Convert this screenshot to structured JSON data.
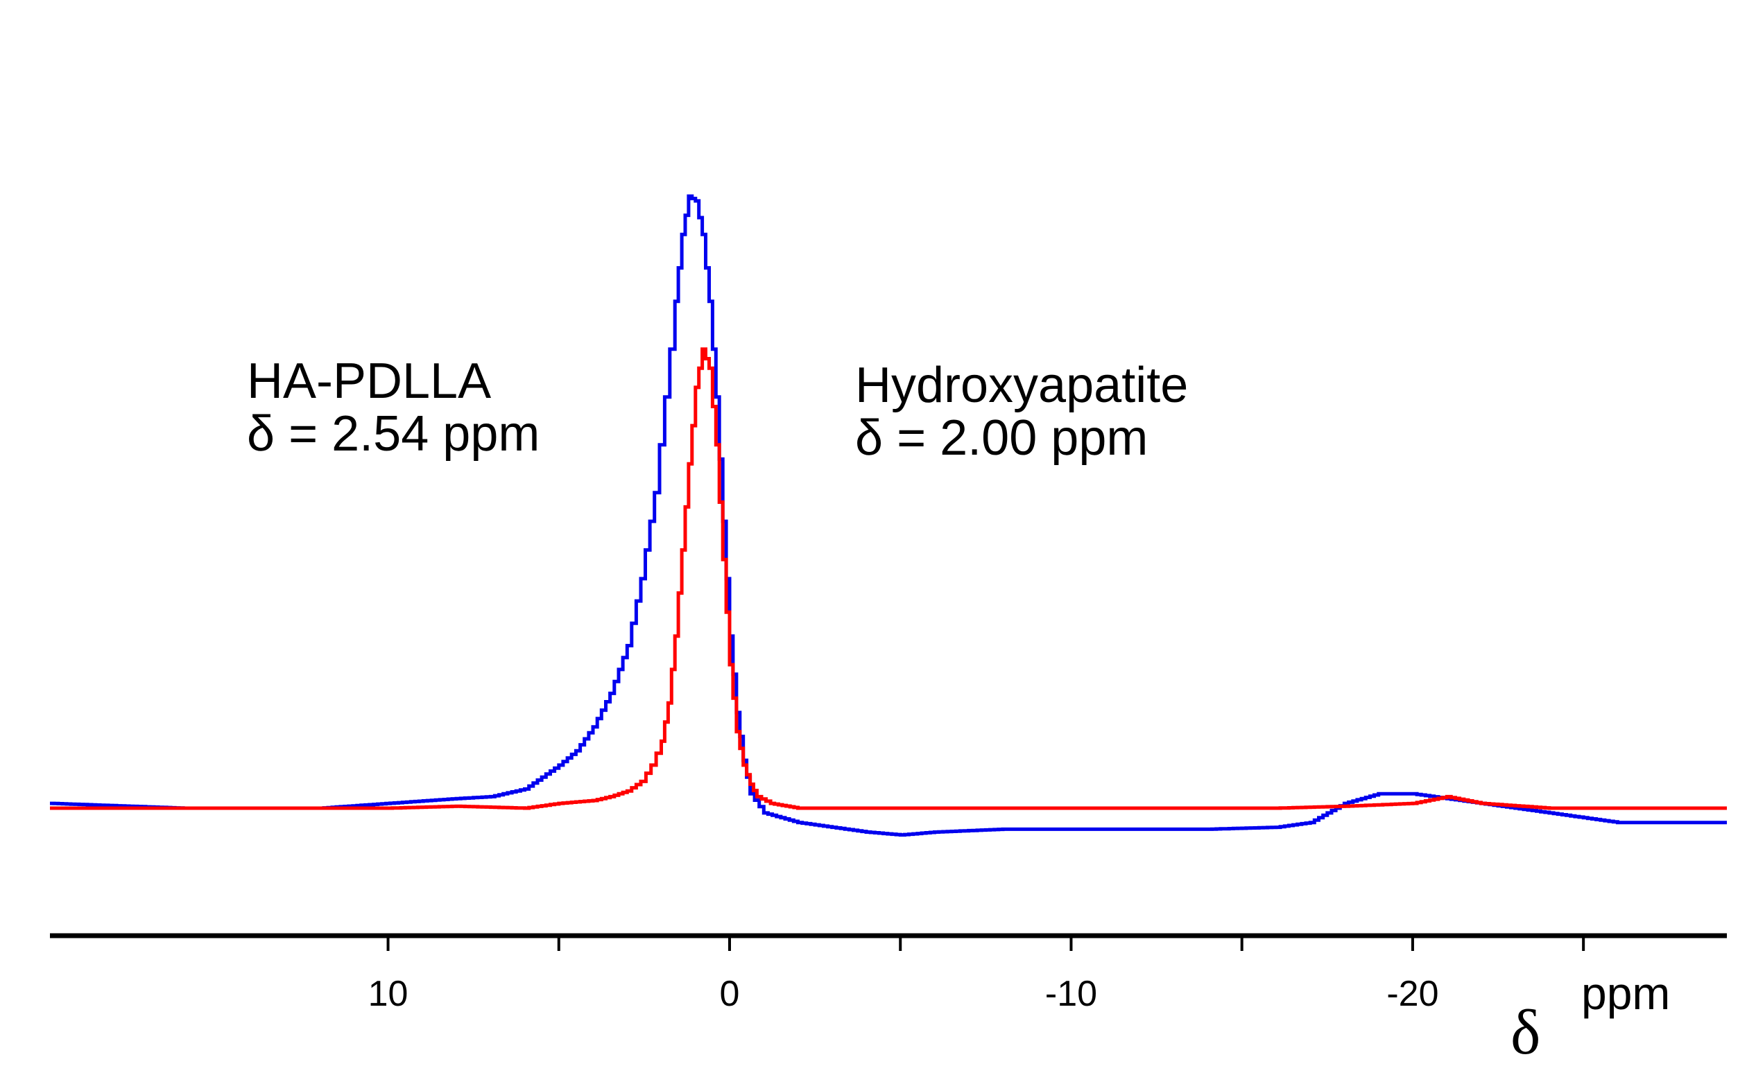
{
  "chart_data": {
    "type": "line",
    "title": "",
    "xlabel_symbol": "δ",
    "xlabel_unit": "ppm",
    "ylabel": "",
    "xlim": [
      19.9,
      -29.2
    ],
    "ylim": [
      -1.0,
      6.5
    ],
    "grid": false,
    "x_ticks": [
      {
        "value": 10,
        "label": "10"
      },
      {
        "value": 0,
        "label": "0"
      },
      {
        "value": -10,
        "label": "-10"
      },
      {
        "value": -20,
        "label": "-20"
      }
    ],
    "minor_ticks": [
      5,
      -5,
      -15,
      -25
    ],
    "series": [
      {
        "name": "HA-PDLLA",
        "color": "#0000ee",
        "x": [
          19.9,
          16.0,
          12.0,
          8.0,
          7.0,
          6.0,
          5.0,
          4.5,
          4.0,
          3.5,
          3.0,
          2.6,
          2.2,
          1.9,
          1.6,
          1.4,
          1.2,
          1.0,
          0.8,
          0.6,
          0.4,
          0.2,
          0.0,
          -0.2,
          -0.4,
          -0.6,
          -1.0,
          -2.0,
          -3.0,
          -4.0,
          -5.0,
          -6.0,
          -8.0,
          -10.0,
          -12.0,
          -14.0,
          -16.0,
          -17.0,
          -18.0,
          -19.0,
          -20.0,
          -21.0,
          -22.0,
          -24.0,
          -26.0,
          -28.0,
          -29.2
        ],
        "y": [
          0.05,
          0.0,
          0.0,
          0.1,
          0.12,
          0.2,
          0.45,
          0.6,
          0.85,
          1.2,
          1.7,
          2.4,
          3.3,
          4.3,
          5.3,
          6.0,
          6.4,
          6.35,
          6.0,
          5.3,
          4.3,
          3.0,
          1.8,
          1.0,
          0.5,
          0.15,
          -0.05,
          -0.15,
          -0.2,
          -0.25,
          -0.28,
          -0.25,
          -0.22,
          -0.22,
          -0.22,
          -0.22,
          -0.2,
          -0.15,
          0.05,
          0.15,
          0.15,
          0.1,
          0.05,
          -0.05,
          -0.15,
          -0.15,
          -0.15
        ]
      },
      {
        "name": "Hydroxyapatite",
        "color": "#ff0000",
        "x": [
          19.9,
          14.0,
          10.0,
          8.0,
          6.0,
          5.0,
          4.0,
          3.5,
          3.0,
          2.6,
          2.3,
          2.0,
          1.8,
          1.6,
          1.4,
          1.2,
          1.0,
          0.8,
          0.6,
          0.4,
          0.2,
          0.0,
          -0.2,
          -0.4,
          -0.6,
          -0.8,
          -1.2,
          -2.0,
          -4.0,
          -10.0,
          -16.0,
          -18.0,
          -20.0,
          -21.0,
          -22.0,
          -24.0,
          -26.0,
          -29.2
        ],
        "y": [
          0.0,
          0.0,
          0.0,
          0.02,
          0.0,
          0.05,
          0.08,
          0.12,
          0.18,
          0.28,
          0.45,
          0.7,
          1.1,
          1.8,
          2.7,
          3.6,
          4.4,
          4.8,
          4.6,
          3.8,
          2.6,
          1.5,
          0.8,
          0.45,
          0.25,
          0.12,
          0.05,
          0.0,
          0.0,
          0.0,
          0.0,
          0.02,
          0.05,
          0.12,
          0.05,
          0.0,
          0.0,
          0.0
        ]
      }
    ]
  },
  "annotations": {
    "ha_pdlla_title": "HA-PDLLA",
    "ha_pdlla_shift": "δ = 2.54 ppm",
    "hydroxyapatite_title": "Hydroxyapatite",
    "hydroxyapatite_shift": "δ = 2.00 ppm"
  }
}
